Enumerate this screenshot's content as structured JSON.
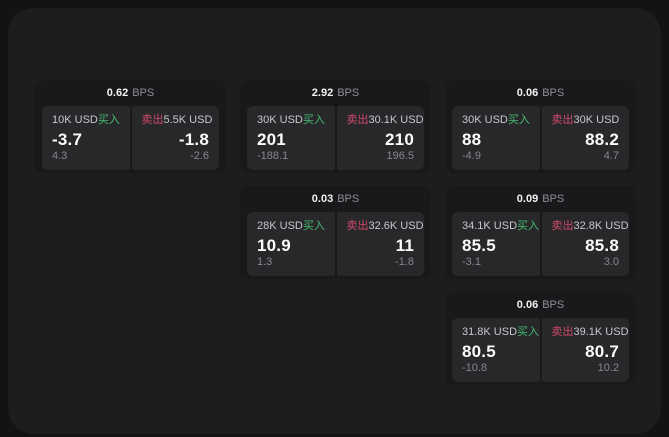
{
  "labels": {
    "bps_unit": "BPS",
    "buy": "买入",
    "sell": "卖出"
  },
  "colors": {
    "buy": "#45bd72",
    "sell": "#d14a6b",
    "panel_bg": "#1d1d1f",
    "card_bg": "#19191b",
    "cell_bg": "#28282a"
  },
  "cards": [
    {
      "bps": "0.62",
      "buy": {
        "amount": "10K USD",
        "value": "-3.7",
        "delta": "4.3"
      },
      "sell": {
        "amount": "5.5K USD",
        "value": "-1.8",
        "delta": "-2.6"
      }
    },
    {
      "bps": "2.92",
      "buy": {
        "amount": "30K USD",
        "value": "201",
        "delta": "-188.1"
      },
      "sell": {
        "amount": "30.1K USD",
        "value": "210",
        "delta": "196.5"
      }
    },
    {
      "bps": "0.06",
      "buy": {
        "amount": "30K USD",
        "value": "88",
        "delta": "-4.9"
      },
      "sell": {
        "amount": "30K USD",
        "value": "88.2",
        "delta": "4.7"
      }
    },
    {
      "bps": "0.03",
      "buy": {
        "amount": "28K USD",
        "value": "10.9",
        "delta": "1.3"
      },
      "sell": {
        "amount": "32.6K USD",
        "value": "11",
        "delta": "-1.8"
      }
    },
    {
      "bps": "0.09",
      "buy": {
        "amount": "34.1K USD",
        "value": "85.5",
        "delta": "-3.1"
      },
      "sell": {
        "amount": "32.8K USD",
        "value": "85.8",
        "delta": "3.0"
      }
    },
    {
      "bps": "0.06",
      "buy": {
        "amount": "31.8K USD",
        "value": "80.5",
        "delta": "-10.8"
      },
      "sell": {
        "amount": "39.1K USD",
        "value": "80.7",
        "delta": "10.2"
      }
    }
  ]
}
